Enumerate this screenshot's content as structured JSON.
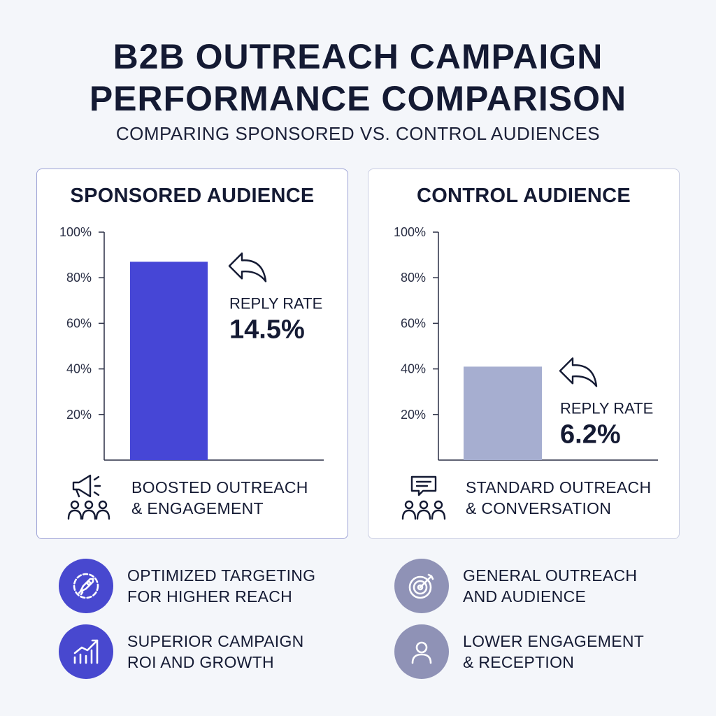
{
  "header": {
    "title_line1": "B2B OUTREACH CAMPAIGN",
    "title_line2": "PERFORMANCE COMPARISON",
    "subtitle": "COMPARING SPONSORED VS. CONTROL AUDIENCES"
  },
  "colors": {
    "sponsored_bar": "#4646d6",
    "control_bar": "#a6aed0",
    "sponsored_icon_bg": "#4848cf",
    "control_icon_bg": "#8f92b6"
  },
  "chart_data": [
    {
      "type": "bar",
      "title": "SPONSORED AUDIENCE",
      "categories": [
        ""
      ],
      "values": [
        87
      ],
      "ylim": [
        0,
        100
      ],
      "yticks": [
        "20%",
        "40%",
        "60%",
        "80%",
        "100%"
      ],
      "ytick_values": [
        20,
        40,
        60,
        80,
        100
      ],
      "annotation_label": "REPLY RATE",
      "annotation_value": "14.5%",
      "grid": false
    },
    {
      "type": "bar",
      "title": "CONTROL AUDIENCE",
      "categories": [
        ""
      ],
      "values": [
        41
      ],
      "ylim": [
        0,
        100
      ],
      "yticks": [
        "20%",
        "40%",
        "60%",
        "80%",
        "100%"
      ],
      "ytick_values": [
        20,
        40,
        60,
        80,
        100
      ],
      "annotation_label": "REPLY RATE",
      "annotation_value": "6.2%",
      "grid": false
    }
  ],
  "panels": {
    "sponsored": {
      "footer_line1": "BOOSTED OUTREACH",
      "footer_line2": "& ENGAGEMENT",
      "footer_icon": "megaphone-audience-icon"
    },
    "control": {
      "footer_line1": "STANDARD OUTREACH",
      "footer_line2": "& CONVERSATION",
      "footer_icon": "chat-audience-icon"
    }
  },
  "features": [
    {
      "icon": "rocket-gear-icon",
      "line1": "OPTIMIZED TARGETING",
      "line2": "FOR HIGHER REACH"
    },
    {
      "icon": "target-icon",
      "line1": "GENERAL OUTREACH",
      "line2": "AND AUDIENCE"
    },
    {
      "icon": "growth-chart-icon",
      "line1": "SUPERIOR CAMPAIGN",
      "line2": "ROI AND GROWTH"
    },
    {
      "icon": "user-icon",
      "line1": "LOWER ENGAGEMENT",
      "line2": "& RECEPTION"
    }
  ]
}
